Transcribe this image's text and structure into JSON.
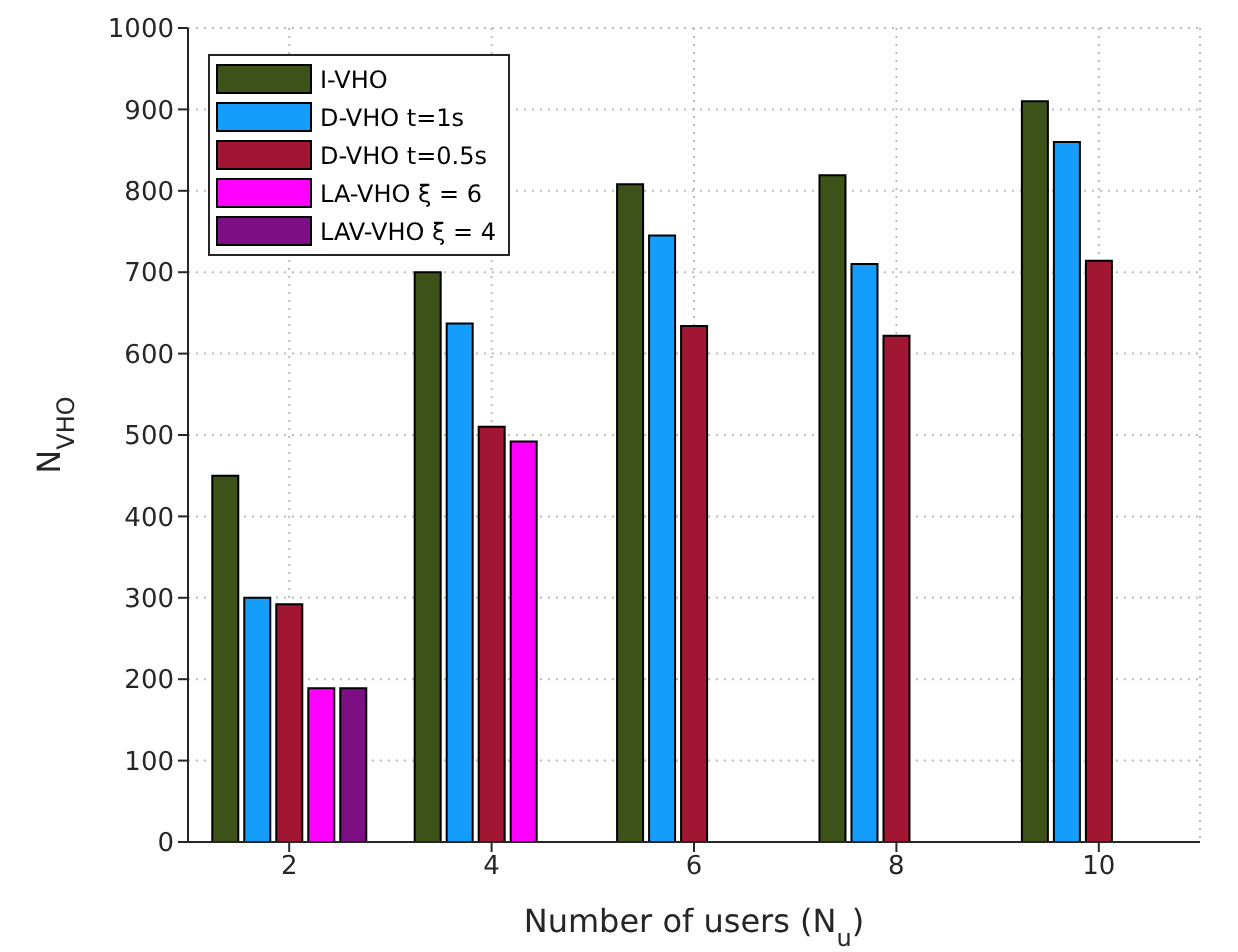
{
  "chart_data": {
    "type": "bar",
    "xlabel": "Number of users (N$_{u}$)",
    "ylabel": "N$_{VHO}$",
    "categories": [
      "2",
      "4",
      "6",
      "8",
      "10"
    ],
    "series": [
      {
        "name": "I-VHO",
        "color": "#3d5219",
        "values": [
          450,
          700,
          808,
          819,
          910
        ]
      },
      {
        "name": "D-VHO t=1s",
        "color": "#149dfa",
        "values": [
          300,
          637,
          745,
          710,
          860
        ]
      },
      {
        "name": "D-VHO t=0.5s",
        "color": "#a11632",
        "values": [
          292,
          510,
          634,
          622,
          714
        ]
      },
      {
        "name": "LA-VHO ξ = 6",
        "color": "#ff00ff",
        "values": [
          189,
          492,
          null,
          null,
          null
        ]
      },
      {
        "name": "LAV-VHO ξ = 4",
        "color": "#7e0e83",
        "values": [
          189,
          null,
          null,
          null,
          null
        ]
      }
    ],
    "ylim": [
      0,
      1000
    ],
    "yticks": [
      0,
      100,
      200,
      300,
      400,
      500,
      600,
      700,
      800,
      900,
      1000
    ],
    "grid": true,
    "legend": "top left"
  }
}
